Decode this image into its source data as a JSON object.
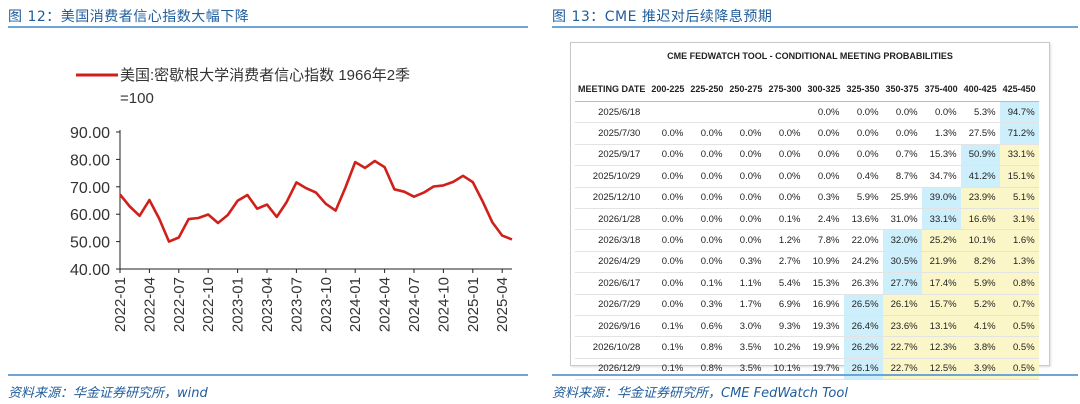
{
  "left": {
    "figure_title": "图 12：美国消费者信心指数大幅下降",
    "source": "资料来源：华金证券研究所，wind",
    "colors": {
      "series": "#d0201b",
      "title": "#1f5c9c",
      "rule": "#6ea4d6"
    }
  },
  "right": {
    "figure_title": "图 13：CME 推迟对后续降息预期",
    "source": "资料来源：华金证券研究所，CME FedWatch Tool",
    "table_title": "CME FEDWATCH TOOL - CONDITIONAL MEETING PROBABILITIES",
    "colors": {
      "blue_highlight": "#cdeefb",
      "yellow_highlight": "#fbf6c8"
    }
  },
  "chart_data": [
    {
      "type": "line",
      "title": "",
      "legend": [
        "美国:密歇根大学消费者信心指数 1966年2季=100"
      ],
      "legend_line1": "美国:密歇根大学消费者信心指数 1966年2季",
      "legend_line2": "=100",
      "ylim": [
        40,
        90
      ],
      "yticks": [
        "90.00",
        "80.00",
        "70.00",
        "60.00",
        "50.00",
        "40.00"
      ],
      "xticks": [
        "2022-01",
        "2022-04",
        "2022-07",
        "2022-10",
        "2023-01",
        "2023-04",
        "2023-07",
        "2023-10",
        "2024-01",
        "2024-04",
        "2024-07",
        "2024-10",
        "2025-01",
        "2025-04"
      ],
      "series": [
        {
          "name": "美国:密歇根大学消费者信心指数 1966年2季=100",
          "x": [
            "2022-01",
            "2022-02",
            "2022-03",
            "2022-04",
            "2022-05",
            "2022-06",
            "2022-07",
            "2022-08",
            "2022-09",
            "2022-10",
            "2022-11",
            "2022-12",
            "2023-01",
            "2023-02",
            "2023-03",
            "2023-04",
            "2023-05",
            "2023-06",
            "2023-07",
            "2023-08",
            "2023-09",
            "2023-10",
            "2023-11",
            "2023-12",
            "2024-01",
            "2024-02",
            "2024-03",
            "2024-04",
            "2024-05",
            "2024-06",
            "2024-07",
            "2024-08",
            "2024-09",
            "2024-10",
            "2024-11",
            "2024-12",
            "2025-01",
            "2025-02",
            "2025-03",
            "2025-04",
            "2025-05"
          ],
          "values": [
            67.2,
            62.8,
            59.4,
            65.2,
            58.4,
            50.0,
            51.5,
            58.2,
            58.6,
            59.9,
            56.8,
            59.7,
            64.9,
            67.0,
            62.0,
            63.5,
            59.0,
            64.4,
            71.6,
            69.5,
            67.9,
            63.8,
            61.3,
            69.7,
            79.0,
            76.9,
            79.4,
            77.2,
            69.1,
            68.2,
            66.4,
            67.9,
            70.1,
            70.5,
            71.8,
            74.0,
            71.7,
            64.7,
            57.0,
            52.2,
            50.8
          ]
        }
      ]
    },
    {
      "type": "table",
      "title": "CME FEDWATCH TOOL - CONDITIONAL MEETING PROBABILITIES",
      "columns": [
        "MEETING DATE",
        "200-225",
        "225-250",
        "250-275",
        "275-300",
        "300-325",
        "325-350",
        "350-375",
        "375-400",
        "400-425",
        "425-450"
      ],
      "rows": [
        [
          "2025/6/18",
          "",
          "",
          "",
          "",
          "0.0%",
          "0.0%",
          "0.0%",
          "0.0%",
          "5.3%",
          "94.7%"
        ],
        [
          "2025/7/30",
          "0.0%",
          "0.0%",
          "0.0%",
          "0.0%",
          "0.0%",
          "0.0%",
          "0.0%",
          "1.3%",
          "27.5%",
          "71.2%"
        ],
        [
          "2025/9/17",
          "0.0%",
          "0.0%",
          "0.0%",
          "0.0%",
          "0.0%",
          "0.0%",
          "0.7%",
          "15.3%",
          "50.9%",
          "33.1%"
        ],
        [
          "2025/10/29",
          "0.0%",
          "0.0%",
          "0.0%",
          "0.0%",
          "0.0%",
          "0.4%",
          "8.7%",
          "34.7%",
          "41.2%",
          "15.1%"
        ],
        [
          "2025/12/10",
          "0.0%",
          "0.0%",
          "0.0%",
          "0.0%",
          "0.3%",
          "5.9%",
          "25.9%",
          "39.0%",
          "23.9%",
          "5.1%"
        ],
        [
          "2026/1/28",
          "0.0%",
          "0.0%",
          "0.0%",
          "0.1%",
          "2.4%",
          "13.6%",
          "31.0%",
          "33.1%",
          "16.6%",
          "3.1%"
        ],
        [
          "2026/3/18",
          "0.0%",
          "0.0%",
          "0.0%",
          "1.2%",
          "7.8%",
          "22.0%",
          "32.0%",
          "25.2%",
          "10.1%",
          "1.6%"
        ],
        [
          "2026/4/29",
          "0.0%",
          "0.0%",
          "0.3%",
          "2.7%",
          "10.9%",
          "24.2%",
          "30.5%",
          "21.9%",
          "8.2%",
          "1.3%"
        ],
        [
          "2026/6/17",
          "0.0%",
          "0.1%",
          "1.1%",
          "5.4%",
          "15.3%",
          "26.3%",
          "27.7%",
          "17.4%",
          "5.9%",
          "0.8%"
        ],
        [
          "2026/7/29",
          "0.0%",
          "0.3%",
          "1.7%",
          "6.9%",
          "16.9%",
          "26.5%",
          "26.1%",
          "15.7%",
          "5.2%",
          "0.7%"
        ],
        [
          "2026/9/16",
          "0.1%",
          "0.6%",
          "3.0%",
          "9.3%",
          "19.3%",
          "26.4%",
          "23.6%",
          "13.1%",
          "4.1%",
          "0.5%"
        ],
        [
          "2026/10/28",
          "0.1%",
          "0.8%",
          "3.5%",
          "10.2%",
          "19.9%",
          "26.2%",
          "22.7%",
          "12.3%",
          "3.8%",
          "0.5%"
        ],
        [
          "2026/12/9",
          "0.1%",
          "0.8%",
          "3.5%",
          "10.1%",
          "19.7%",
          "26.1%",
          "22.7%",
          "12.5%",
          "3.9%",
          "0.5%"
        ]
      ],
      "highlight_max_blue_col": [
        10,
        10,
        9,
        9,
        8,
        8,
        7,
        7,
        7,
        6,
        6,
        6,
        6
      ],
      "highlight_yellow_from_col": [
        null,
        null,
        10,
        10,
        9,
        9,
        8,
        8,
        8,
        7,
        7,
        7,
        7
      ]
    }
  ]
}
